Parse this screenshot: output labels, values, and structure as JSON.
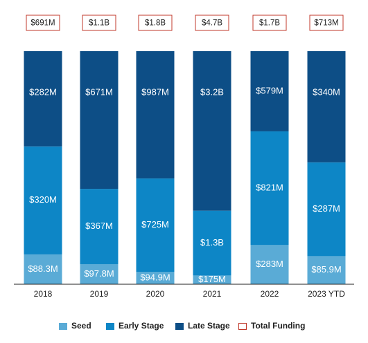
{
  "chart_data": {
    "type": "bar",
    "stacked": true,
    "normalized": true,
    "categories": [
      "2018",
      "2019",
      "2020",
      "2021",
      "2022",
      "2023 YTD"
    ],
    "series": [
      {
        "name": "Seed",
        "color": "#5aabd6",
        "values": [
          88.3,
          97.8,
          94.9,
          175,
          283,
          85.9
        ],
        "labels": [
          "$88.3M",
          "$97.8M",
          "$94.9M",
          "$175M",
          "$283M",
          "$85.9M"
        ]
      },
      {
        "name": "Early Stage",
        "color": "#0d86c6",
        "values": [
          320,
          367,
          725,
          1300,
          821,
          287
        ],
        "labels": [
          "$320M",
          "$367M",
          "$725M",
          "$1.3B",
          "$821M",
          "$287M"
        ]
      },
      {
        "name": "Late Stage",
        "color": "#0d4e86",
        "values": [
          282,
          671,
          987,
          3200,
          579,
          340
        ],
        "labels": [
          "$282M",
          "$671M",
          "$987M",
          "$3.2B",
          "$579M",
          "$340M"
        ]
      }
    ],
    "totals": {
      "name": "Total Funding",
      "color": "#c0392b",
      "labels": [
        "$691M",
        "$1.1B",
        "$1.8B",
        "$4.7B",
        "$1.7B",
        "$713M"
      ]
    },
    "legend_position": "bottom",
    "grid": false,
    "title": "",
    "xlabel": "",
    "ylabel": ""
  }
}
